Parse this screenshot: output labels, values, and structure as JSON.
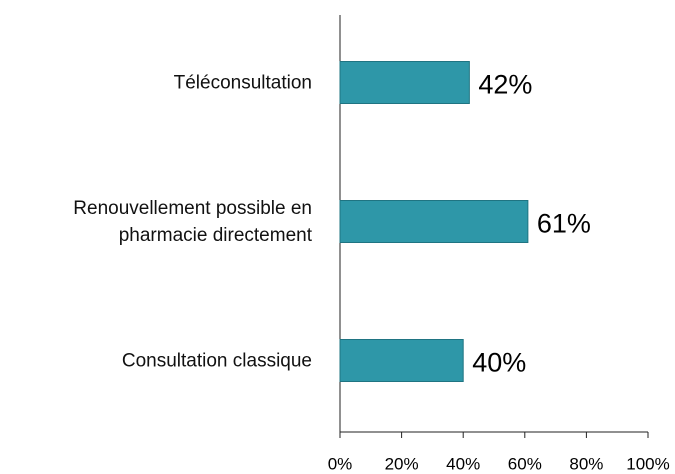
{
  "chart_data": {
    "type": "hbar",
    "categories": [
      "Téléconsultation",
      "Renouvellement possible en pharmacie directement",
      "Consultation classique"
    ],
    "values": [
      42,
      61,
      40
    ],
    "value_labels": [
      "42%",
      "61%",
      "40%"
    ],
    "color": "#2e97a8",
    "xlim": [
      0,
      100
    ],
    "xticks": [
      {
        "value": 0,
        "label": "0%"
      },
      {
        "value": 20,
        "label": "20%"
      },
      {
        "value": 40,
        "label": "40%"
      },
      {
        "value": 60,
        "label": "60%"
      },
      {
        "value": 80,
        "label": "80%"
      },
      {
        "value": 100,
        "label": "100%"
      }
    ],
    "grid": false
  }
}
